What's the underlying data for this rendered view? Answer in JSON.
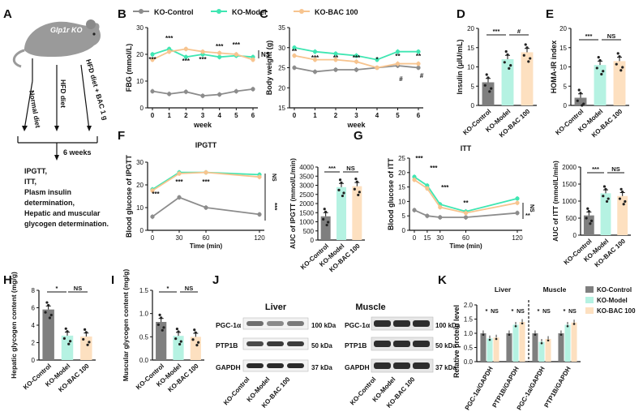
{
  "panel_letters": [
    "A",
    "B",
    "C",
    "D",
    "E",
    "F",
    "G",
    "H",
    "I",
    "J",
    "K"
  ],
  "colors": {
    "control": "#8c8c8c",
    "model": "#3fe6b2",
    "bac": "#f7c48f",
    "axis": "#111111",
    "bar_control": "#7f7f7f",
    "bar_model": "#b5f2e2",
    "bar_bac": "#fde0c0"
  },
  "legend": {
    "series": [
      "KO-Control",
      "KO-Model",
      "KO-BAC 100"
    ]
  },
  "schematic": {
    "mouse_label": "Glp1r KO",
    "arm_labels": [
      "Normal diet",
      "HFD diet",
      "HFD diet + BAC 1 g"
    ],
    "weeks_label": "6 weeks",
    "outcomes": [
      "IPGTT,",
      "ITT,",
      "Plasm insulin",
      "determination,",
      "Hepatic and muscular",
      "glycogen determination."
    ]
  },
  "blot": {
    "liver_title": "Liver",
    "muscle_title": "Muscle",
    "proteins": [
      "PGC-1α",
      "PTP1B",
      "GAPDH"
    ],
    "kda": [
      "100 kDa",
      "50 kDa",
      "37 kDa"
    ],
    "lanes": [
      "KO-Control",
      "KO-Model",
      "KO-BAC 100"
    ]
  },
  "chart_data": [
    {
      "panel": "B",
      "type": "line",
      "xlabel": "week",
      "ylabel": "FBG (mmol/L)",
      "x": [
        0,
        1,
        2,
        3,
        4,
        5,
        6
      ],
      "yticks": [
        0,
        10,
        20,
        30
      ],
      "ylim": [
        0,
        30
      ],
      "series": [
        {
          "name": "KO-Control",
          "values": [
            6.2,
            5.2,
            6.0,
            4.5,
            5.0,
            6.2,
            7.0
          ]
        },
        {
          "name": "KO-Model",
          "values": [
            20.0,
            22.0,
            19.0,
            20.0,
            19.0,
            19.5,
            19.0
          ]
        },
        {
          "name": "KO-BAC 100",
          "values": [
            18.0,
            21.0,
            22.0,
            21.0,
            20.5,
            20.0,
            18.0
          ]
        }
      ],
      "annotations": [
        "***",
        "***",
        "***",
        "***",
        "***",
        "***",
        "NS"
      ]
    },
    {
      "panel": "C",
      "type": "line",
      "xlabel": "week",
      "ylabel": "Body weight (g)",
      "x": [
        0,
        1,
        2,
        3,
        4,
        5,
        6
      ],
      "yticks": [
        15,
        20,
        25,
        30,
        35
      ],
      "ylim": [
        15,
        35
      ],
      "series": [
        {
          "name": "KO-Control",
          "values": [
            25.0,
            24.0,
            24.5,
            24.5,
            25.0,
            25.5,
            25.0
          ]
        },
        {
          "name": "KO-Model",
          "values": [
            30.0,
            29.0,
            28.5,
            28.0,
            27.0,
            29.0,
            29.0
          ]
        },
        {
          "name": "KO-BAC 100",
          "values": [
            28.0,
            27.0,
            27.0,
            26.5,
            25.0,
            26.0,
            26.0
          ]
        }
      ],
      "annotations": [
        "**",
        "***",
        "**",
        "***",
        "*",
        "**",
        "**",
        "#",
        "#"
      ]
    },
    {
      "panel": "D",
      "type": "bar",
      "ylabel": "Insulin (μIU/mL)",
      "categories": [
        "KO-Control",
        "KO-Model",
        "KO-BAC 100"
      ],
      "values": [
        6.0,
        12.0,
        13.8
      ],
      "yticks": [
        0,
        5,
        10,
        15,
        20
      ],
      "ylim": [
        0,
        20
      ],
      "annotations": [
        "***",
        "#"
      ]
    },
    {
      "panel": "E",
      "type": "bar",
      "ylabel": "HOMA-IR index",
      "categories": [
        "KO-Control",
        "KO-Model",
        "KO-BAC 100"
      ],
      "values": [
        2.0,
        10.5,
        11.5
      ],
      "yticks": [
        0,
        5,
        10,
        15,
        20
      ],
      "ylim": [
        0,
        20
      ],
      "annotations": [
        "***",
        "NS"
      ]
    },
    {
      "panel": "F",
      "type": "line",
      "title": "IPGTT",
      "xlabel": "Time (min)",
      "ylabel": "Blood glucose of IPGTT",
      "x": [
        0,
        30,
        60,
        120
      ],
      "yticks": [
        0,
        10,
        20,
        30
      ],
      "ylim": [
        0,
        30
      ],
      "series": [
        {
          "name": "KO-Control",
          "values": [
            6.0,
            14.5,
            10.0,
            7.0
          ]
        },
        {
          "name": "KO-Model",
          "values": [
            18.0,
            25.5,
            25.5,
            24.5
          ]
        },
        {
          "name": "KO-BAC 100",
          "values": [
            17.5,
            25.0,
            25.5,
            23.5
          ]
        }
      ],
      "annotations": [
        "***",
        "***",
        "***",
        "***",
        "NS"
      ]
    },
    {
      "panel": "F",
      "type": "bar",
      "ylabel": "AUC of IPGTT (mmol/L/min)",
      "categories": [
        "KO-Control",
        "KO-Model",
        "KO-BAC 100"
      ],
      "values": [
        1300,
        2900,
        2950
      ],
      "yticks": [
        0,
        500,
        1000,
        1500,
        2000,
        2500,
        3000,
        3500,
        4000
      ],
      "ylim": [
        0,
        4000
      ],
      "annotations": [
        "***",
        "NS"
      ]
    },
    {
      "panel": "G",
      "type": "line",
      "title": "ITT",
      "xlabel": "Time (min)",
      "ylabel": "Blood glucose of ITT",
      "x": [
        0,
        15,
        30,
        60,
        120
      ],
      "yticks": [
        0,
        5,
        10,
        15,
        20,
        25
      ],
      "ylim": [
        0,
        25
      ],
      "series": [
        {
          "name": "KO-Control",
          "values": [
            7.0,
            5.0,
            4.5,
            4.5,
            6.0
          ]
        },
        {
          "name": "KO-Model",
          "values": [
            18.5,
            15.5,
            9.0,
            6.5,
            11.0
          ]
        },
        {
          "name": "KO-BAC 100",
          "values": [
            17.5,
            14.5,
            8.0,
            6.0,
            9.5
          ]
        }
      ],
      "annotations": [
        "***",
        "***",
        "***",
        "**",
        "**",
        "NS"
      ]
    },
    {
      "panel": "G",
      "type": "bar",
      "ylabel": "AUC of ITT (mmol/L/min)",
      "categories": [
        "KO-Control",
        "KO-Model",
        "KO-BAC 100"
      ],
      "values": [
        580,
        1230,
        1150
      ],
      "yticks": [
        0,
        500,
        1000,
        1500,
        2000
      ],
      "ylim": [
        0,
        2000
      ],
      "annotations": [
        "***",
        "NS"
      ]
    },
    {
      "panel": "H",
      "type": "bar",
      "ylabel": "Hepatic glycogen content (mg/g)",
      "categories": [
        "KO-Control",
        "KO-Model",
        "KO-BAC 100"
      ],
      "values": [
        5.8,
        2.8,
        2.7
      ],
      "yticks": [
        0,
        2,
        4,
        6,
        8
      ],
      "ylim": [
        0,
        8
      ],
      "annotations": [
        "*",
        "NS"
      ]
    },
    {
      "panel": "I",
      "type": "bar",
      "ylabel": "Muscular glycogen content (mg/g)",
      "categories": [
        "KO-Control",
        "KO-Model",
        "KO-BAC 100"
      ],
      "values": [
        0.82,
        0.52,
        0.5
      ],
      "yticks": [
        0.0,
        0.5,
        1.0,
        1.5
      ],
      "ylim": [
        0,
        1.5
      ],
      "annotations": [
        "*",
        "NS"
      ]
    },
    {
      "panel": "K",
      "type": "bar",
      "ylabel": "Relative protein level",
      "group_titles": [
        "Liver",
        "Muscle"
      ],
      "categories": [
        "PGC-1α/GAPDH",
        "PTP1B/GAPDH",
        "PGC-1α/GAPDH",
        "PTP1B/GAPDH"
      ],
      "yticks": [
        0.0,
        0.5,
        1.0,
        1.5,
        2.0
      ],
      "ylim": [
        0,
        2
      ],
      "series": [
        {
          "name": "KO-Control",
          "values": [
            1.0,
            1.0,
            1.0,
            1.0
          ]
        },
        {
          "name": "KO-Model",
          "values": [
            0.82,
            1.3,
            0.7,
            1.3
          ]
        },
        {
          "name": "KO-BAC 100",
          "values": [
            0.85,
            1.4,
            0.8,
            1.38
          ]
        }
      ],
      "annotations": [
        "*",
        "NS",
        "*",
        "NS",
        "*",
        "NS",
        "*",
        "NS"
      ]
    }
  ]
}
